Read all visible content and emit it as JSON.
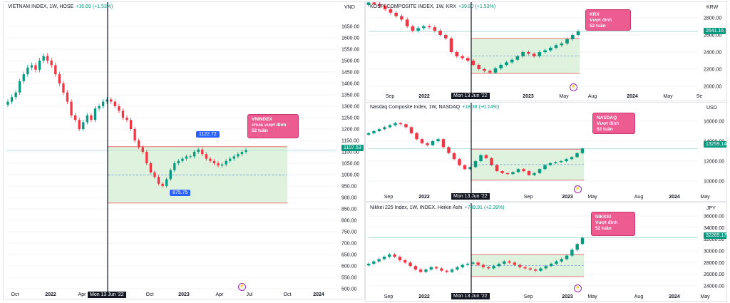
{
  "chart_data": [
    {
      "type": "candlestick",
      "title": "VIETNAM INDEX, 1W, HOSE",
      "change": "+16.69 (+1.53%)",
      "currency": "VND",
      "ylim": [
        500,
        1700
      ],
      "y_ticks": [
        "1650.00",
        "1600.00",
        "1550.00",
        "1500.00",
        "1450.00",
        "1400.00",
        "1350.00",
        "1300.00",
        "1250.00",
        "1200.00",
        "1150.00",
        "1100.00",
        "1050.00",
        "1000.00",
        "950.00",
        "900.00",
        "850.00",
        "800.00",
        "750.00",
        "700.00",
        "650.00",
        "600.00",
        "550.00",
        "500.00"
      ],
      "x_ticks": [
        "Oct",
        "2022",
        "Apr",
        "Jul",
        "Oct",
        "2023",
        "Apr",
        "Jul",
        "Oct",
        "2024"
      ],
      "last_price": "1107.53",
      "range_box": {
        "low": 875.75,
        "high": 1122.72,
        "mid": 999
      },
      "levels": [
        {
          "label": "1122.72",
          "value": 1122.72
        },
        {
          "label": "875.75",
          "value": 875.75
        }
      ],
      "annotation": "VNINDEX\nchưa vượt đỉnh\n52 tuần",
      "date_label": "Mon 13 Jun '22",
      "series_close": [
        1320,
        1340,
        1360,
        1410,
        1440,
        1470,
        1480,
        1460,
        1500,
        1520,
        1500,
        1480,
        1440,
        1400,
        1360,
        1320,
        1260,
        1240,
        1200,
        1230,
        1260,
        1240,
        1290,
        1300,
        1320,
        1330,
        1320,
        1300,
        1280,
        1250,
        1240,
        1200,
        1150,
        1120,
        1100,
        1050,
        1010,
        990,
        960,
        950,
        980,
        1020,
        1050,
        1060,
        1070,
        1080,
        1080,
        1100,
        1110,
        1090,
        1070,
        1060,
        1050,
        1040,
        1045,
        1060,
        1070,
        1080,
        1090,
        1100,
        1107.53
      ]
    },
    {
      "type": "candlestick",
      "title": "KOSPI COMPOSITE INDEX, 1W, KRX",
      "change": "+39.80 (+1.53%)",
      "currency": "KRW",
      "ylim": [
        1950,
        2900
      ],
      "y_ticks": [
        "2800.00",
        "2600.00",
        "2400.00",
        "2200.00",
        "2000.00"
      ],
      "x_ticks": [
        "Sep",
        "2022",
        "Mar",
        "2023",
        "May",
        "Aug",
        "2024",
        "May",
        "Se"
      ],
      "last_price": "2641.16",
      "range_box": {
        "low": 2150,
        "high": 2560,
        "mid": 2355
      },
      "annotation": "KRX\nVượt đỉnh\n52 tuần",
      "date_label": "Mon 13 Jun '22",
      "series_close": [
        2980,
        2960,
        2940,
        2900,
        2860,
        2820,
        2780,
        2700,
        2650,
        2680,
        2700,
        2690,
        2650,
        2600,
        2560,
        2400,
        2350,
        2330,
        2300,
        2250,
        2200,
        2180,
        2160,
        2210,
        2250,
        2280,
        2310,
        2350,
        2400,
        2380,
        2350,
        2400,
        2420,
        2450,
        2480,
        2500,
        2550,
        2600,
        2641.16
      ]
    },
    {
      "type": "candlestick",
      "title": "Nasdaq Composite Index, 1W, NASDAQ",
      "change": "+18.38 (+0.14%)",
      "currency": "USD",
      "ylim": [
        9000,
        17000
      ],
      "y_ticks": [
        "16000.00",
        "14000.00",
        "12000.00",
        "10000.00"
      ],
      "x_ticks": [
        "Sep",
        "2022",
        "Mar",
        "Sep",
        "2023",
        "May",
        "Aug",
        "2024",
        "May"
      ],
      "last_price": "13259.14",
      "range_box": {
        "low": 10100,
        "high": 13200,
        "mid": 11650
      },
      "annotation": "NASDAQ\nVượt đỉnh\n52 tuần",
      "date_label": "Mon 13 Jun '22",
      "series_close": [
        14800,
        15000,
        15200,
        15400,
        15600,
        15800,
        15700,
        15400,
        14800,
        14200,
        13800,
        13600,
        14000,
        14200,
        13400,
        12800,
        12200,
        11600,
        11200,
        11400,
        12000,
        12600,
        12300,
        11600,
        11000,
        10800,
        10700,
        10900,
        11200,
        11000,
        10600,
        10800,
        11200,
        11600,
        11800,
        11900,
        12000,
        12200,
        12400,
        12800,
        13259.14
      ]
    },
    {
      "type": "heikin-ashi",
      "title": "Nikkei 225 Index, 1W, INDEX, Heikin Ashi",
      "change": "+749.91 (+2.39%)",
      "currency": "JPY",
      "ylim": [
        23000,
        37000
      ],
      "y_ticks": [
        "36000.00",
        "34000.00",
        "32000.00",
        "30000.00",
        "28000.00",
        "26000.00",
        "24000.00"
      ],
      "x_ticks": [
        "Sep",
        "2022",
        "Mar",
        "Sep",
        "2023",
        "May",
        "Aug",
        "2024",
        "May"
      ],
      "last_price": "32265.17",
      "range_box": {
        "low": 25600,
        "high": 29400,
        "mid": 27500
      },
      "annotation": "NIKKEI\nVượt đỉnh\n52 tuần",
      "date_label": "Mon 13 Jun '22",
      "series_close": [
        27800,
        28200,
        28600,
        29000,
        29400,
        29000,
        28400,
        28000,
        27400,
        26800,
        26400,
        26800,
        27200,
        27000,
        26600,
        26400,
        26800,
        27200,
        27600,
        27800,
        28000,
        27600,
        27200,
        27000,
        27400,
        27800,
        28200,
        28000,
        27600,
        27200,
        27000,
        26800,
        26600,
        27000,
        27400,
        27800,
        28200,
        28600,
        29200,
        30200,
        31200,
        32265.17
      ]
    }
  ]
}
